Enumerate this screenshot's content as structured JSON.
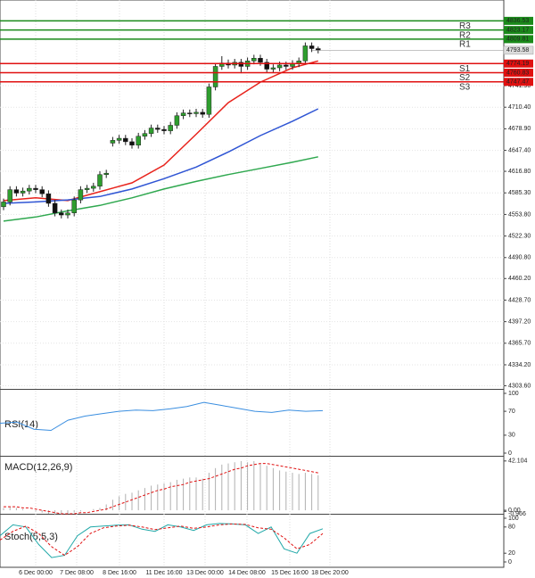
{
  "chart_data": [
    {
      "type": "candlestick",
      "open": [
        4565,
        4572,
        4590,
        4585,
        4588,
        4592,
        4590,
        4584,
        4570,
        4556,
        4553,
        4556,
        4575,
        4590,
        4592,
        4595,
        4612,
        4658,
        4662,
        4665,
        4660,
        4655,
        4668,
        4672,
        4680,
        4678,
        4676,
        4684,
        4698,
        4702,
        4701,
        4703,
        4700,
        4740,
        4770,
        4775,
        4772,
        4776,
        4770,
        4778,
        4782,
        4776,
        4766,
        4768,
        4772,
        4770,
        4774,
        4778,
        4800,
        4796
      ],
      "high": [
        4577,
        4595,
        4595,
        4593,
        4597,
        4597,
        4595,
        4589,
        4575,
        4561,
        4561,
        4580,
        4595,
        4597,
        4600,
        4617,
        4619,
        4667,
        4670,
        4670,
        4665,
        4673,
        4677,
        4685,
        4685,
        4683,
        4689,
        4703,
        4707,
        4707,
        4708,
        4708,
        4745,
        4775,
        4785,
        4780,
        4781,
        4781,
        4783,
        4787,
        4787,
        4781,
        4773,
        4777,
        4777,
        4779,
        4783,
        4805,
        4805,
        4799
      ],
      "low": [
        4560,
        4567,
        4580,
        4580,
        4583,
        4585,
        4579,
        4565,
        4551,
        4548,
        4548,
        4551,
        4570,
        4585,
        4587,
        4590,
        4607,
        4653,
        4657,
        4655,
        4650,
        4650,
        4663,
        4667,
        4673,
        4671,
        4671,
        4679,
        4693,
        4696,
        4696,
        4695,
        4695,
        4735,
        4765,
        4767,
        4767,
        4760,
        4765,
        4773,
        4771,
        4761,
        4761,
        4763,
        4765,
        4765,
        4769,
        4773,
        4791,
        4789
      ],
      "close": [
        4572,
        4590,
        4585,
        4588,
        4592,
        4590,
        4584,
        4570,
        4556,
        4553,
        4556,
        4575,
        4590,
        4592,
        4595,
        4612,
        4614,
        4662,
        4665,
        4660,
        4655,
        4668,
        4672,
        4680,
        4678,
        4676,
        4684,
        4698,
        4702,
        4701,
        4703,
        4700,
        4740,
        4770,
        4775,
        4772,
        4776,
        4770,
        4778,
        4782,
        4776,
        4766,
        4768,
        4772,
        4770,
        4774,
        4778,
        4800,
        4796,
        4793.58
      ],
      "up_color": "#2e9e2e",
      "down_color": "#111111",
      "series": [
        {
          "color": "#e8231c",
          "x": [
            0,
            5,
            10,
            15,
            20,
            25,
            30,
            35,
            40,
            45,
            49
          ],
          "values": [
            4574,
            4578,
            4574,
            4587,
            4600,
            4626,
            4671,
            4717,
            4747,
            4768,
            4778
          ]
        },
        {
          "color": "#2f55d4",
          "x": [
            0,
            5,
            10,
            15,
            20,
            25,
            30,
            35,
            40,
            45,
            49
          ],
          "values": [
            4570,
            4572,
            4575,
            4580,
            4591,
            4606,
            4623,
            4645,
            4669,
            4690,
            4708
          ]
        },
        {
          "color": "#2fa84f",
          "x": [
            0,
            5,
            10,
            15,
            20,
            25,
            30,
            35,
            40,
            45,
            49
          ],
          "values": [
            4544,
            4550,
            4559,
            4567,
            4578,
            4591,
            4602,
            4612,
            4621,
            4630,
            4638
          ]
        }
      ],
      "levels": [
        {
          "name": "R3",
          "value": 4836.53,
          "color": "#1a8a1a"
        },
        {
          "name": "R2",
          "value": 4823.17,
          "color": "#1a8a1a"
        },
        {
          "name": "R1",
          "value": 4809.81,
          "color": "#1a8a1a"
        },
        {
          "name": "S1",
          "value": 4774.19,
          "color": "#e01010"
        },
        {
          "name": "S2",
          "value": 4760.83,
          "color": "#e01010"
        },
        {
          "name": "S3",
          "value": 4747.47,
          "color": "#e01010"
        }
      ],
      "last_price": 4793.58,
      "ylim": [
        4299,
        4867
      ],
      "yticks": [
        {
          "value": 4741.9,
          "label": "4741.90"
        },
        {
          "value": 4710.4,
          "label": "4710.40"
        },
        {
          "value": 4678.9,
          "label": "4678.90"
        },
        {
          "value": 4647.4,
          "label": "4647.40"
        },
        {
          "value": 4616.8,
          "label": "4616.80"
        },
        {
          "value": 4585.3,
          "label": "4585.30"
        },
        {
          "value": 4553.8,
          "label": "4553.80"
        },
        {
          "value": 4522.3,
          "label": "4522.30"
        },
        {
          "value": 4490.8,
          "label": "4490.80"
        },
        {
          "value": 4460.2,
          "label": "4460.20"
        },
        {
          "value": 4428.7,
          "label": "4428.70"
        },
        {
          "value": 4397.2,
          "label": "4397.20"
        },
        {
          "value": 4365.7,
          "label": "4365.70"
        },
        {
          "value": 4334.2,
          "label": "4334.20"
        },
        {
          "value": 4303.6,
          "label": "4303.60"
        }
      ],
      "grid": true
    },
    {
      "type": "line",
      "title": "RSI(14)",
      "series": [
        {
          "color": "#3a8ee0",
          "values": [
            50,
            52,
            40,
            38,
            55,
            62,
            66,
            70,
            72,
            71,
            74,
            78,
            85,
            80,
            75,
            70,
            68,
            72,
            70,
            71
          ]
        }
      ],
      "ylim": [
        0,
        100
      ],
      "yticks": [
        0,
        30,
        70,
        100
      ]
    },
    {
      "type": "macd",
      "title": "MACD(12,26,9)",
      "values": [
        2,
        3,
        2,
        1,
        0,
        -1,
        -2,
        -3,
        -4,
        -4,
        -3,
        -2,
        -1,
        0,
        1,
        2,
        5,
        9,
        12,
        14,
        15,
        17,
        19,
        21,
        22,
        23,
        24,
        26,
        27,
        28,
        28,
        27,
        32,
        36,
        39,
        40,
        41,
        42,
        41,
        42,
        40,
        38,
        36,
        34,
        33,
        32,
        31,
        32,
        31,
        30
      ],
      "color": "#b0b0b0",
      "signal": {
        "color": "#e01010",
        "values": [
          3,
          3,
          3,
          2,
          2,
          1,
          0,
          -1,
          -2,
          -3,
          -3,
          -3,
          -2,
          -2,
          -1,
          0,
          1,
          3,
          5,
          7,
          9,
          11,
          13,
          15,
          17,
          18,
          20,
          21,
          22,
          24,
          25,
          26,
          27,
          29,
          31,
          33,
          35,
          36,
          38,
          39,
          40,
          40,
          39,
          38,
          37,
          36,
          35,
          34,
          33,
          32
        ]
      },
      "ylim": [
        -3,
        45
      ],
      "yticks": [
        {
          "value": 42.104,
          "label": "42.104"
        },
        {
          "value": 0,
          "label": "0.00"
        },
        {
          "value": -0.966,
          "label": "-0.966"
        }
      ]
    },
    {
      "type": "line",
      "title": "Stoch(5,5,3)",
      "series": [
        {
          "color": "#20a8a8",
          "values": [
            60,
            85,
            80,
            40,
            10,
            15,
            60,
            80,
            82,
            84,
            85,
            75,
            70,
            85,
            80,
            72,
            85,
            88,
            87,
            85,
            65,
            80,
            30,
            20,
            65,
            76
          ]
        },
        {
          "color": "#e01010",
          "dashed": true,
          "values": [
            50,
            70,
            82,
            65,
            35,
            15,
            35,
            65,
            78,
            82,
            84,
            80,
            74,
            78,
            82,
            77,
            80,
            85,
            87,
            86,
            78,
            75,
            55,
            30,
            40,
            65
          ]
        }
      ],
      "ylim": [
        0,
        100
      ],
      "yticks": [
        0,
        20,
        80,
        100
      ],
      "time_labels": [
        "6 Dec 00:00",
        "7 Dec 08:00",
        "8 Dec 16:00",
        "11 Dec 16:00",
        "13 Dec 00:00",
        "14 Dec 08:00",
        "15 Dec 16:00",
        "18 Dec 20:00"
      ]
    }
  ]
}
